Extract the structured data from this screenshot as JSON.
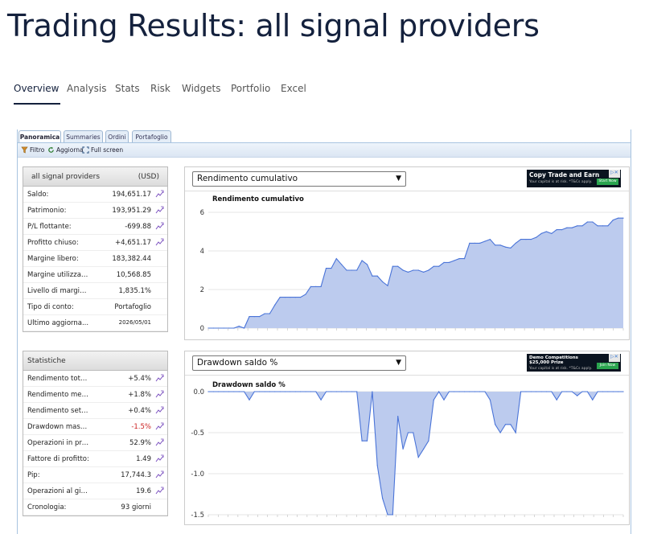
{
  "page": {
    "title": "Trading Results: all signal providers"
  },
  "nav": {
    "tabs": [
      {
        "label": "Overview",
        "active": true
      },
      {
        "label": "Analysis"
      },
      {
        "label": "Stats"
      },
      {
        "label": "Risk"
      },
      {
        "label": "Widgets"
      },
      {
        "label": "Portfolio"
      },
      {
        "label": "Excel"
      }
    ]
  },
  "widget": {
    "tabs": [
      "Panoramica",
      "Summaries",
      "Ordini",
      "Portafoglio"
    ],
    "toolbar": {
      "filter": "Filtro",
      "refresh": "Aggiorna",
      "fullscreen": "Full screen"
    }
  },
  "account": {
    "name": "all signal providers",
    "currency": "(USD)",
    "rows": [
      {
        "label": "Saldo:",
        "value": "194,651.17",
        "chart": true
      },
      {
        "label": "Patrimonio:",
        "value": "193,951.29",
        "chart": true
      },
      {
        "label": "P/L flottante:",
        "value": "-699.88",
        "chart": true
      },
      {
        "label": "Profitto chiuso:",
        "value": "+4,651.17",
        "chart": true
      },
      {
        "label": "Margine libero:",
        "value": "183,382.44",
        "chart": false
      },
      {
        "label": "Margine utilizzato:",
        "value": "10,568.85",
        "chart": false
      },
      {
        "label": "Livello di margine:",
        "value": "1,835.1%",
        "chart": false
      },
      {
        "label": "Tipo di conto:",
        "value": "Portafoglio",
        "chart": false
      },
      {
        "label": "Ultimo aggiorna...",
        "value": "2026/05/01",
        "chart": false
      }
    ]
  },
  "stats": {
    "title": "Statistiche",
    "rows": [
      {
        "label": "Rendimento totale:",
        "value": "+5.4%",
        "chart": true
      },
      {
        "label": "Rendimento men...",
        "value": "+1.8%",
        "chart": true
      },
      {
        "label": "Rendimento setti...",
        "value": "+0.4%",
        "chart": true
      },
      {
        "label": "Drawdown massi...",
        "value": "-1.5%",
        "chart": true,
        "negative": true
      },
      {
        "label": "Operazioni in pro...",
        "value": "52.9%",
        "chart": true
      },
      {
        "label": "Fattore di profitto:",
        "value": "1.49",
        "chart": true
      },
      {
        "label": "Pip:",
        "value": "17,744.3",
        "chart": true
      },
      {
        "label": "Operazioni al gior...",
        "value": "19.6",
        "chart": true
      },
      {
        "label": "Cronologia:",
        "value": "93 giorni",
        "chart": false
      }
    ]
  },
  "ads": [
    {
      "headline": "Copy Trade and Earn",
      "small": "Your capital is at risk. *T&Cs apply.",
      "button": "Start Now"
    },
    {
      "headline": "Demo Competitions $25,000 Prize",
      "small": "Your capital is at risk. *T&Cs apply.",
      "button": "Join Now"
    }
  ],
  "chart_data": [
    {
      "type": "area",
      "select_label": "Rendimento cumulativo",
      "title": "Rendimento cumulativo",
      "ylim": [
        0,
        6
      ],
      "yticks": [
        "0",
        "2",
        "4",
        "6"
      ],
      "color": "#4a74d8",
      "fill": "#bccbee",
      "values": [
        0,
        0,
        0,
        0,
        0,
        0,
        0.1,
        0,
        0.6,
        0.6,
        0.6,
        0.75,
        0.75,
        1.2,
        1.6,
        1.6,
        1.6,
        1.6,
        1.6,
        1.75,
        2.15,
        2.15,
        2.15,
        3.1,
        3.1,
        3.6,
        3.3,
        3.0,
        3.0,
        3.0,
        3.5,
        3.3,
        2.7,
        2.7,
        2.4,
        2.2,
        3.2,
        3.2,
        3.0,
        2.9,
        3.0,
        3.0,
        2.9,
        3.0,
        3.2,
        3.2,
        3.4,
        3.4,
        3.5,
        3.6,
        3.6,
        4.4,
        4.4,
        4.4,
        4.5,
        4.6,
        4.3,
        4.3,
        4.2,
        4.15,
        4.4,
        4.6,
        4.6,
        4.6,
        4.7,
        4.9,
        5.0,
        4.9,
        5.1,
        5.1,
        5.2,
        5.2,
        5.3,
        5.3,
        5.5,
        5.5,
        5.3,
        5.3,
        5.3,
        5.6,
        5.7,
        5.7
      ]
    },
    {
      "type": "area",
      "select_label": "Drawdown saldo %",
      "title": "Drawdown saldo %",
      "ylim": [
        -1.5,
        0
      ],
      "yticks": [
        "0.0",
        "-0.5",
        "-1.0",
        "-1.5"
      ],
      "color": "#4a74d8",
      "fill": "#bccbee",
      "values": [
        0,
        0,
        0,
        0,
        0,
        0,
        0,
        0,
        -0.1,
        0,
        0,
        0,
        0,
        0,
        0,
        0,
        0,
        0,
        0,
        0,
        0,
        0,
        -0.1,
        0,
        0,
        0,
        0,
        0,
        0,
        0,
        -0.6,
        -0.6,
        0,
        -0.9,
        -1.3,
        -1.5,
        -1.5,
        -0.3,
        -0.7,
        -0.5,
        -0.5,
        -0.8,
        -0.7,
        -0.6,
        -0.1,
        0,
        -0.1,
        0,
        0,
        0,
        0,
        0,
        0,
        0,
        0,
        -0.1,
        -0.4,
        -0.5,
        -0.4,
        -0.4,
        -0.5,
        0,
        0,
        0,
        0,
        0,
        0,
        0,
        -0.1,
        0,
        0,
        0,
        -0.05,
        0,
        0,
        -0.1,
        0,
        0,
        0,
        0,
        0,
        0
      ]
    }
  ]
}
